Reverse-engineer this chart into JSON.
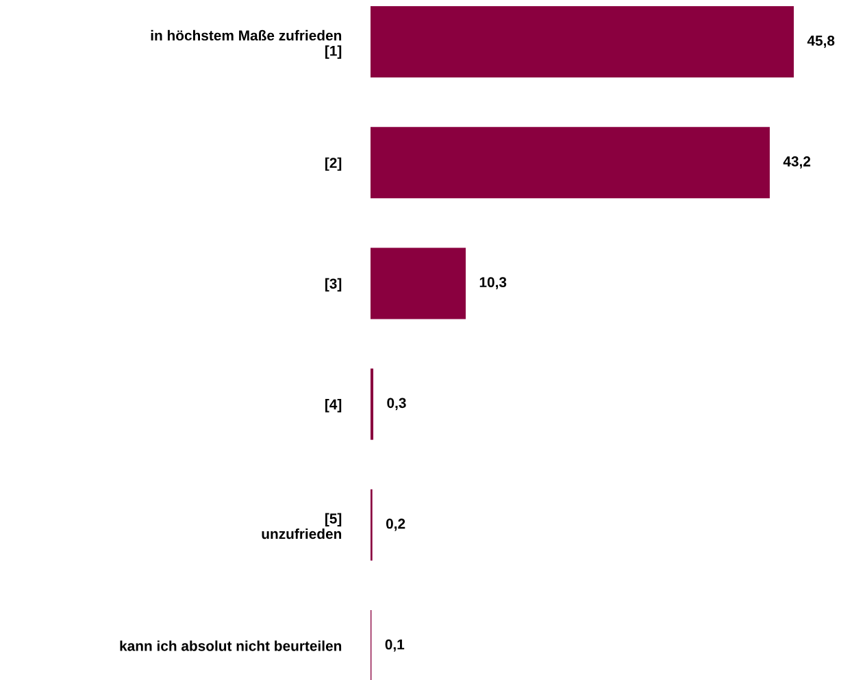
{
  "chart_data": {
    "type": "bar",
    "orientation": "horizontal",
    "categories": [
      "in höchstem Maße zufrieden\n[1]",
      "[2]",
      "[3]",
      "[4]",
      "[5]\nunzufrieden",
      "kann ich absolut nicht beurteilen"
    ],
    "values": [
      45.8,
      43.2,
      10.3,
      0.3,
      0.2,
      0.1
    ],
    "value_labels": [
      "45,8",
      "43,2",
      "10,3",
      "0,3",
      "0,2",
      "0,1"
    ],
    "color": "#8a003f",
    "grid": false,
    "legend": false
  }
}
